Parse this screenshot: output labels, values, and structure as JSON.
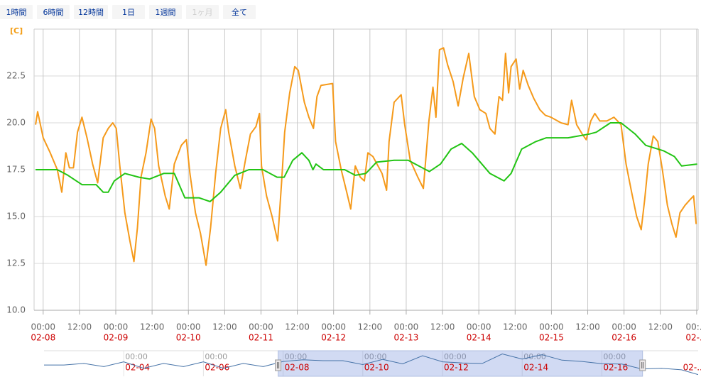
{
  "chart_data": {
    "type": "line",
    "range_buttons": [
      {
        "label": "1時間",
        "enabled": true
      },
      {
        "label": "6時間",
        "enabled": true
      },
      {
        "label": "12時間",
        "enabled": true
      },
      {
        "label": "1日",
        "enabled": true
      },
      {
        "label": "1週間",
        "enabled": true
      },
      {
        "label": "1ヶ月",
        "enabled": false
      },
      {
        "label": "全て",
        "enabled": true
      }
    ],
    "y_label": "[C]",
    "ylim": [
      10,
      25
    ],
    "yticks": [
      {
        "value": 10,
        "label": "10.0"
      },
      {
        "value": 12.5,
        "label": "12.5"
      },
      {
        "value": 15,
        "label": "15.0"
      },
      {
        "value": 17.5,
        "label": "17.5"
      },
      {
        "value": 20,
        "label": "20.0"
      },
      {
        "value": 22.5,
        "label": "22.5"
      }
    ],
    "xlim": [
      "02-07 21:00",
      "02-17 00:30"
    ],
    "xticks": [
      {
        "value": "02-08 00:00",
        "label": "00:00"
      },
      {
        "value": "02-08 12:00",
        "label": "12:00"
      },
      {
        "value": "02-09 00:00",
        "label": "00:00"
      },
      {
        "value": "02-09 12:00",
        "label": "12:00"
      },
      {
        "value": "02-10 00:00",
        "label": "00:00"
      },
      {
        "value": "02-10 12:00",
        "label": "12:00"
      },
      {
        "value": "02-11 00:00",
        "label": "00:00"
      },
      {
        "value": "02-11 12:00",
        "label": "12:00"
      },
      {
        "value": "02-12 00:00",
        "label": "00:00"
      },
      {
        "value": "02-12 12:00",
        "label": "12:00"
      },
      {
        "value": "02-13 00:00",
        "label": "00:00"
      },
      {
        "value": "02-13 12:00",
        "label": "12:00"
      },
      {
        "value": "02-14 00:00",
        "label": "00:00"
      },
      {
        "value": "02-14 12:00",
        "label": "12:00"
      },
      {
        "value": "02-15 00:00",
        "label": "00:00"
      },
      {
        "value": "02-15 12:00",
        "label": "12:00"
      },
      {
        "value": "02-16 00:00",
        "label": "00:00"
      },
      {
        "value": "02-16 12:00",
        "label": "12:00"
      },
      {
        "value": "02-17 00:00",
        "label": "00:..."
      }
    ],
    "xdate_labels": [
      {
        "value": "02-08 00:00",
        "label": "02-08"
      },
      {
        "value": "02-09 00:00",
        "label": "02-09"
      },
      {
        "value": "02-10 00:00",
        "label": "02-10"
      },
      {
        "value": "02-11 00:00",
        "label": "02-11"
      },
      {
        "value": "02-12 00:00",
        "label": "02-12"
      },
      {
        "value": "02-13 00:00",
        "label": "02-13"
      },
      {
        "value": "02-14 00:00",
        "label": "02-14"
      },
      {
        "value": "02-15 00:00",
        "label": "02-15"
      },
      {
        "value": "02-16 00:00",
        "label": "02-16"
      },
      {
        "value": "02-17 00:00",
        "label": "02-..."
      }
    ],
    "grid": true,
    "series": [
      {
        "color": "#f59a1b",
        "x": [
          "02-07 21:30",
          "02-07 22:10",
          "02-08 00:00",
          "02-08 02:20",
          "02-08 04:40",
          "02-08 06:10",
          "02-08 07:30",
          "02-08 08:40",
          "02-08 10:00",
          "02-08 11:20",
          "02-08 12:50",
          "02-08 14:30",
          "02-08 16:20",
          "02-08 18:00",
          "02-08 19:50",
          "02-08 21:30",
          "02-08 23:00",
          "02-09 00:10",
          "02-09 01:20",
          "02-09 03:00",
          "02-09 04:40",
          "02-09 06:00",
          "02-09 07:10",
          "02-09 08:20",
          "02-09 10:00",
          "02-09 11:40",
          "02-09 12:50",
          "02-09 14:10",
          "02-09 16:20",
          "02-09 17:40",
          "02-09 19:20",
          "02-09 21:40",
          "02-09 23:20",
          "02-10 00:30",
          "02-10 02:20",
          "02-10 04:00",
          "02-10 05:50",
          "02-10 07:20",
          "02-10 09:00",
          "02-10 10:40",
          "02-10 12:20",
          "02-10 13:20",
          "02-10 15:20",
          "02-10 17:10",
          "02-10 18:50",
          "02-10 20:30",
          "02-10 22:20",
          "02-10 23:30",
          "02-11 00:10",
          "02-11 01:50",
          "02-11 03:40",
          "02-11 05:30",
          "02-11 06:50",
          "02-11 07:50",
          "02-11 09:30",
          "02-11 11:10",
          "02-11 12:20",
          "02-11 14:20",
          "02-11 15:50",
          "02-11 17:20",
          "02-11 18:30",
          "02-11 19:50",
          "02-11 23:40",
          "02-12 00:40",
          "02-12 02:30",
          "02-12 04:20",
          "02-12 05:40",
          "02-12 07:10",
          "02-12 08:50",
          "02-12 10:10",
          "02-12 11:20",
          "02-12 13:00",
          "02-12 14:40",
          "02-12 16:00",
          "02-12 17:30",
          "02-12 18:20",
          "02-12 20:00",
          "02-12 22:20",
          "02-12 23:30",
          "02-13 01:20",
          "02-13 03:50",
          "02-13 05:40",
          "02-13 07:30",
          "02-13 08:50",
          "02-13 09:50",
          "02-13 11:00",
          "02-13 12:20",
          "02-13 13:40",
          "02-13 15:30",
          "02-13 17:10",
          "02-13 18:50",
          "02-13 20:40",
          "02-13 22:30",
          "02-14 00:20",
          "02-14 02:20",
          "02-14 03:40",
          "02-14 05:20",
          "02-14 06:40",
          "02-14 07:50",
          "02-14 08:50",
          "02-14 09:50",
          "02-14 10:40",
          "02-14 12:20",
          "02-14 13:30",
          "02-14 14:40",
          "02-14 16:20",
          "02-14 18:10",
          "02-14 20:10",
          "02-14 22:00",
          "02-14 23:50",
          "02-15 03:10",
          "02-15 05:30",
          "02-15 06:40",
          "02-15 08:20",
          "02-15 10:10",
          "02-15 11:30",
          "02-15 13:00",
          "02-15 14:20",
          "02-15 16:00",
          "02-15 18:20",
          "02-15 20:40",
          "02-15 23:00",
          "02-16 00:40",
          "02-16 02:30",
          "02-16 04:10",
          "02-16 05:40",
          "02-16 06:50",
          "02-16 08:00",
          "02-16 09:40",
          "02-16 11:10",
          "02-16 12:40",
          "02-16 14:20",
          "02-16 15:50",
          "02-16 17:10",
          "02-16 18:30",
          "02-16 20:10",
          "02-16 21:50",
          "02-16 23:00",
          "02-16 23:50"
        ],
        "values": [
          19.9,
          20.6,
          19.2,
          18.4,
          17.5,
          16.3,
          18.4,
          17.6,
          17.6,
          19.5,
          20.3,
          19.2,
          17.8,
          16.8,
          19.2,
          19.7,
          20.0,
          19.7,
          17.7,
          15.2,
          13.7,
          12.6,
          14.4,
          17.1,
          18.4,
          20.2,
          19.7,
          17.7,
          16.1,
          15.4,
          17.8,
          18.8,
          19.1,
          17.3,
          15.2,
          14.1,
          12.4,
          14.4,
          17.3,
          19.7,
          20.7,
          19.5,
          17.7,
          16.5,
          18.0,
          19.4,
          19.8,
          20.5,
          17.7,
          16.1,
          15.0,
          13.7,
          16.9,
          19.5,
          21.6,
          23.0,
          22.8,
          21.1,
          20.3,
          19.7,
          21.4,
          22.0,
          22.1,
          19.0,
          17.5,
          16.3,
          15.4,
          17.7,
          17.1,
          16.9,
          18.4,
          18.2,
          17.7,
          17.3,
          16.4,
          19.0,
          21.1,
          21.5,
          19.9,
          18.0,
          17.1,
          16.5,
          20.1,
          21.9,
          20.3,
          23.9,
          24.0,
          23.1,
          22.2,
          20.9,
          22.4,
          23.7,
          21.4,
          20.7,
          20.5,
          19.7,
          19.4,
          21.4,
          21.2,
          23.7,
          21.6,
          23.0,
          23.4,
          21.8,
          22.8,
          22.0,
          21.3,
          20.7,
          20.4,
          20.3,
          20.0,
          19.9,
          21.2,
          19.9,
          19.4,
          19.1,
          20.1,
          20.5,
          20.1,
          20.1,
          20.3,
          19.9,
          17.8,
          16.3,
          15.0,
          14.3,
          15.9,
          17.8,
          19.3,
          19.0,
          17.5,
          15.6,
          14.6,
          13.9,
          15.2,
          15.6,
          15.9,
          16.1,
          14.6
        ]
      },
      {
        "color": "#22c414",
        "x": [
          "02-07 21:30",
          "02-08 04:40",
          "02-08 08:10",
          "02-08 12:50",
          "02-08 17:30",
          "02-08 19:50",
          "02-08 21:30",
          "02-08 23:30",
          "02-09 03:00",
          "02-09 07:40",
          "02-09 11:10",
          "02-09 15:50",
          "02-09 19:20",
          "02-09 22:50",
          "02-10 03:30",
          "02-10 07:10",
          "02-10 10:40",
          "02-10 15:20",
          "02-10 20:00",
          "02-11 00:40",
          "02-11 05:20",
          "02-11 07:40",
          "02-11 10:30",
          "02-11 13:30",
          "02-11 15:50",
          "02-11 17:10",
          "02-11 18:10",
          "02-11 20:40",
          "02-12 03:40",
          "02-12 07:10",
          "02-12 10:40",
          "02-12 14:10",
          "02-12 20:00",
          "02-13 00:40",
          "02-13 04:10",
          "02-13 07:40",
          "02-13 11:20",
          "02-13 14:50",
          "02-13 18:20",
          "02-13 21:50",
          "02-14 03:40",
          "02-14 08:20",
          "02-14 10:40",
          "02-14 14:10",
          "02-14 18:50",
          "02-14 22:20",
          "02-15 05:30",
          "02-15 12:30",
          "02-15 14:50",
          "02-15 19:30",
          "02-15 23:00",
          "02-16 03:40",
          "02-16 07:10",
          "02-16 13:10",
          "02-16 16:40",
          "02-16 19:00",
          "02-17 00:10"
        ],
        "values": [
          17.5,
          17.5,
          17.2,
          16.7,
          16.7,
          16.3,
          16.3,
          16.9,
          17.3,
          17.1,
          17.0,
          17.3,
          17.3,
          16.0,
          16.0,
          15.8,
          16.3,
          17.2,
          17.5,
          17.5,
          17.1,
          17.1,
          18.0,
          18.4,
          18.0,
          17.5,
          17.8,
          17.5,
          17.5,
          17.2,
          17.3,
          17.9,
          18.0,
          18.0,
          17.7,
          17.4,
          17.8,
          18.6,
          18.9,
          18.4,
          17.3,
          16.9,
          17.3,
          18.6,
          19.0,
          19.2,
          19.2,
          19.4,
          19.5,
          20.0,
          20.0,
          19.4,
          18.8,
          18.5,
          18.2,
          17.7,
          17.8
        ]
      }
    ],
    "navigator": {
      "color": "#4572a7",
      "xlim": [
        "02-02 00:00",
        "02-18 10:00"
      ],
      "ylim": [
        10,
        25
      ],
      "x": [
        "02-02 00:00",
        "02-02 12:00",
        "02-03 00:00",
        "02-03 12:00",
        "02-04 00:00",
        "02-04 12:00",
        "02-05 00:00",
        "02-05 12:00",
        "02-06 00:00",
        "02-06 12:00",
        "02-07 00:00",
        "02-07 12:00",
        "02-08 00:00",
        "02-08 12:00",
        "02-09 00:00",
        "02-09 12:00",
        "02-10 00:00",
        "02-10 12:00",
        "02-11 00:00",
        "02-11 12:00",
        "02-12 00:00",
        "02-12 12:00",
        "02-13 00:00",
        "02-13 12:00",
        "02-14 00:00",
        "02-14 12:00",
        "02-15 00:00",
        "02-15 12:00",
        "02-16 00:00",
        "02-16 12:00",
        "02-17 00:00",
        "02-17 12:00",
        "02-18 00:00",
        "02-18 10:00"
      ],
      "values": [
        17,
        17,
        18,
        16,
        19,
        15,
        18,
        16,
        19,
        15,
        18,
        16,
        19.2,
        20.3,
        19.7,
        19.7,
        17.3,
        20.5,
        17.7,
        22.8,
        19.0,
        18.3,
        18.0,
        23.9,
        20.7,
        23.4,
        20.0,
        19.2,
        17.8,
        17.6,
        14.6,
        15,
        14,
        11
      ],
      "time_ticks": [
        {
          "value": "02-04 00:00",
          "label": "00:00"
        },
        {
          "value": "02-06 00:00",
          "label": "00:00"
        },
        {
          "value": "02-08 00:00",
          "label": "00:00"
        },
        {
          "value": "02-10 00:00",
          "label": "00:00"
        },
        {
          "value": "02-12 00:00",
          "label": "00:00"
        },
        {
          "value": "02-14 00:00",
          "label": "00:00"
        },
        {
          "value": "02-16 00:00",
          "label": "00:00"
        }
      ],
      "date_ticks": [
        {
          "value": "02-04 00:00",
          "label": "02-04"
        },
        {
          "value": "02-06 00:00",
          "label": "02-06"
        },
        {
          "value": "02-08 00:00",
          "label": "02-08"
        },
        {
          "value": "02-10 00:00",
          "label": "02-10"
        },
        {
          "value": "02-12 00:00",
          "label": "02-12"
        },
        {
          "value": "02-14 00:00",
          "label": "02-14"
        },
        {
          "value": "02-16 00:00",
          "label": "02-16"
        },
        {
          "value": "02-18 00:00",
          "label": "02-..."
        }
      ]
    }
  }
}
